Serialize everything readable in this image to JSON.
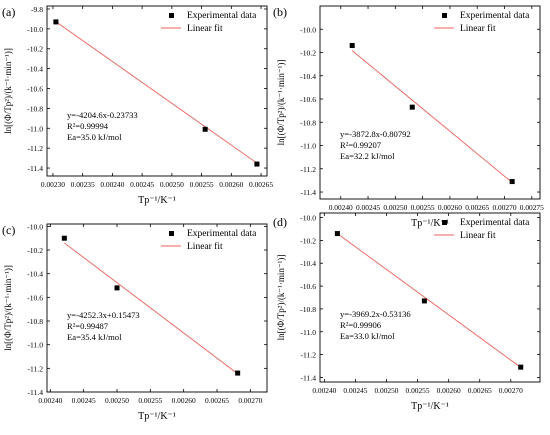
{
  "figure": {
    "fit_color": "#e8605a",
    "point_color": "#000000",
    "axis_color": "#000000"
  },
  "chart_data": [
    {
      "type": "scatter",
      "panel_label": "(a)",
      "xlabel": "Tp⁻¹/K⁻¹",
      "ylabel": "ln[(Φ/Tp²)/(k⁻¹·min⁻¹)]",
      "xlim": [
        0.00229,
        0.00266
      ],
      "ylim": [
        -11.48,
        -9.77
      ],
      "xticks": [
        0.0023,
        0.00235,
        0.0024,
        0.00245,
        0.0025,
        0.00255,
        0.0026,
        0.00265
      ],
      "xtick_labels": [
        "0.00230",
        "0.00235",
        "0.00240",
        "0.00245",
        "0.00250",
        "0.00255",
        "0.00260",
        "0.00265"
      ],
      "yticks": [
        -9.8,
        -10.0,
        -10.2,
        -10.4,
        -10.6,
        -10.8,
        -11.0,
        -11.2,
        -11.4
      ],
      "ytick_labels": [
        "-9.8",
        "-10.0",
        "-10.2",
        "-10.4",
        "-10.6",
        "-10.8",
        "-11.0",
        "-11.2",
        "-11.4"
      ],
      "series": [
        {
          "name": "Experimental data",
          "kind": "points",
          "x": [
            0.002305,
            0.002556,
            0.002643
          ],
          "y": [
            -9.93,
            -11.01,
            -11.36
          ]
        },
        {
          "name": "Linear fit",
          "kind": "line",
          "slope": -4204.6,
          "intercept": -0.23733,
          "x_range": [
            0.002302,
            0.002648
          ]
        }
      ],
      "legend": [
        "Experimental data",
        "Linear fit"
      ],
      "legend_position": "top-right",
      "annotation": [
        "y=-4204.6x-0.23733",
        "R²=0.99994",
        "Ea=35.0 kJ/mol"
      ]
    },
    {
      "type": "scatter",
      "panel_label": "(b)",
      "xlabel": "Tp⁻¹/K⁻¹",
      "ylabel": "ln[(Φ/Tp²)/(k⁻¹·min⁻¹)]",
      "xlim": [
        0.002362,
        0.002765
      ],
      "ylim": [
        -11.46,
        -9.8
      ],
      "xticks": [
        0.0024,
        0.00245,
        0.0025,
        0.00255,
        0.0026,
        0.00265,
        0.0027,
        0.00275
      ],
      "xtick_labels": [
        "0.00240",
        "0.00245",
        "0.00250",
        "0.00255",
        "0.00260",
        "0.00265",
        "0.00270",
        "0.00275"
      ],
      "yticks": [
        -10.0,
        -10.2,
        -10.4,
        -10.6,
        -10.8,
        -11.0,
        -11.2,
        -11.4
      ],
      "ytick_labels": [
        "-10.0",
        "-10.2",
        "-10.4",
        "-10.6",
        "-10.8",
        "-11.0",
        "-11.2",
        "-11.4"
      ],
      "series": [
        {
          "name": "Experimental data",
          "kind": "points",
          "x": [
            0.002421,
            0.002531,
            0.002714
          ],
          "y": [
            -10.14,
            -10.67,
            -11.31
          ]
        },
        {
          "name": "Linear fit",
          "kind": "line",
          "slope": -3872.8,
          "intercept": -0.80792,
          "x_range": [
            0.002421,
            0.002714
          ]
        }
      ],
      "legend": [
        "Experimental data",
        "Linear fit"
      ],
      "legend_position": "top-right",
      "annotation": [
        "y=-3872.8x-0.80792",
        "R²=0.99207",
        "Ea=32.2 kJ/mol"
      ]
    },
    {
      "type": "scatter",
      "panel_label": "(c)",
      "xlabel": "Tp⁻¹/K⁻¹",
      "ylabel": "ln[(Φ/Tp²)/(k⁻¹·min⁻¹)]",
      "xlim": [
        0.002395,
        0.002725
      ],
      "ylim": [
        -11.4,
        -9.98
      ],
      "xticks": [
        0.0024,
        0.00245,
        0.0025,
        0.00255,
        0.0026,
        0.00265,
        0.0027
      ],
      "xtick_labels": [
        "0.00240",
        "0.00245",
        "0.00250",
        "0.00255",
        "0.00260",
        "0.00265",
        "0.00270"
      ],
      "yticks": [
        -10.0,
        -10.2,
        -10.4,
        -10.6,
        -10.8,
        -11.0,
        -11.2,
        -11.4
      ],
      "ytick_labels": [
        "-10.0",
        "-10.2",
        "-10.4",
        "-10.6",
        "-10.8",
        "-11.0",
        "-11.2",
        "-11.4"
      ],
      "series": [
        {
          "name": "Experimental data",
          "kind": "points",
          "x": [
            0.002421,
            0.0025,
            0.002681
          ],
          "y": [
            -10.1,
            -10.52,
            -11.24
          ]
        },
        {
          "name": "Linear fit",
          "kind": "line",
          "slope": -4252.3,
          "intercept": 0.15473,
          "x_range": [
            0.002421,
            0.002681
          ]
        }
      ],
      "legend": [
        "Experimental data",
        "Linear fit"
      ],
      "legend_position": "top-right",
      "annotation": [
        "y=-4252.3x+0.15473",
        "R²=0.99487",
        "Ea=35.4 kJ/mol"
      ]
    },
    {
      "type": "scatter",
      "panel_label": "(d)",
      "xlabel": "Tp⁻¹/K⁻¹",
      "ylabel": "ln[(Φ/Tp²)/(k⁻¹·min⁻¹)]",
      "xlim": [
        0.002393,
        0.002747
      ],
      "ylim": [
        -11.44,
        -9.96
      ],
      "xticks": [
        0.0024,
        0.00245,
        0.0025,
        0.00255,
        0.0026,
        0.00265,
        0.0027
      ],
      "xtick_labels": [
        "0.00240",
        "0.00245",
        "0.00250",
        "0.00255",
        "0.00260",
        "0.00265",
        "0.00270"
      ],
      "yticks": [
        -10.0,
        -10.2,
        -10.4,
        -10.6,
        -10.8,
        -11.0,
        -11.2,
        -11.4
      ],
      "ytick_labels": [
        "-10.0",
        "-10.2",
        "-10.4",
        "-10.6",
        "-10.8",
        "-11.0",
        "-11.2",
        "-11.4"
      ],
      "series": [
        {
          "name": "Experimental data",
          "kind": "points",
          "x": [
            0.002421,
            0.002561,
            0.002716
          ],
          "y": [
            -10.14,
            -10.73,
            -11.31
          ]
        },
        {
          "name": "Linear fit",
          "kind": "line",
          "slope": -3969.2,
          "intercept": -0.53136,
          "x_range": [
            0.002421,
            0.002716
          ]
        }
      ],
      "legend": [
        "Experimental data",
        "Linear fit"
      ],
      "legend_position": "top-right",
      "annotation": [
        "y=-3969.2x-0.53136",
        "R²=0.99906",
        "Ea=33.0 kJ/mol"
      ]
    }
  ]
}
